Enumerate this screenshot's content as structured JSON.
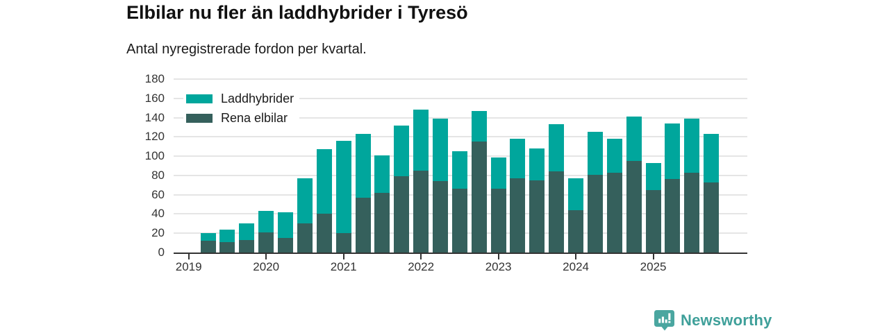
{
  "header": {
    "title": "Elbilar nu fler än laddhybrider i Tyresö",
    "subtitle": "Antal nyregistrerade fordon per kvartal."
  },
  "chart_data": {
    "type": "bar",
    "stacked": true,
    "title": "Elbilar nu fler än laddhybrider i Tyresö",
    "subtitle": "Antal nyregistrerade fordon per kvartal.",
    "categories": [
      "2019 Q1",
      "2019 Q2",
      "2019 Q3",
      "2019 Q4",
      "2020 Q1",
      "2020 Q2",
      "2020 Q3",
      "2020 Q4",
      "2021 Q1",
      "2021 Q2",
      "2021 Q3",
      "2021 Q4",
      "2022 Q1",
      "2022 Q2",
      "2022 Q3",
      "2022 Q4",
      "2023 Q1",
      "2023 Q2",
      "2023 Q3",
      "2023 Q4",
      "2024 Q1",
      "2024 Q2",
      "2024 Q3",
      "2024 Q4",
      "2025 Q1",
      "2025 Q2",
      "2025 Q3",
      "2025 Q4"
    ],
    "series": [
      {
        "name": "Laddhybrider",
        "color": "#00a69c",
        "values": [
          0,
          8,
          13,
          17,
          22,
          27,
          47,
          67,
          96,
          66,
          39,
          53,
          63,
          65,
          39,
          32,
          33,
          41,
          33,
          49,
          33,
          44,
          35,
          46,
          28,
          58,
          56,
          50
        ]
      },
      {
        "name": "Rena elbilar",
        "color": "#35605c",
        "values": [
          0,
          12,
          11,
          13,
          21,
          15,
          30,
          40,
          20,
          57,
          62,
          79,
          85,
          74,
          66,
          115,
          66,
          77,
          75,
          84,
          44,
          81,
          83,
          95,
          65,
          76,
          83,
          73
        ]
      }
    ],
    "stack_order_bottom_to_top": [
      "Rena elbilar",
      "Laddhybrider"
    ],
    "ylim": [
      0,
      180
    ],
    "yticks": [
      0,
      20,
      40,
      60,
      80,
      100,
      120,
      140,
      160,
      180
    ],
    "xticks": [
      {
        "index": 0,
        "label": "2019"
      },
      {
        "index": 4,
        "label": "2020"
      },
      {
        "index": 8,
        "label": "2021"
      },
      {
        "index": 12,
        "label": "2022"
      },
      {
        "index": 16,
        "label": "2023"
      },
      {
        "index": 20,
        "label": "2024"
      },
      {
        "index": 24,
        "label": "2025"
      }
    ],
    "grid": true,
    "legend_position": "top-left"
  },
  "footer": {
    "brand": "Newsworthy"
  },
  "colors": {
    "laddhybrider": "#00a69c",
    "rena_elbilar": "#35605c",
    "gridline": "#e5e5e5",
    "axis": "#333333",
    "brand_badge": "#4aa6a0",
    "brand_text": "#3fa09a"
  }
}
